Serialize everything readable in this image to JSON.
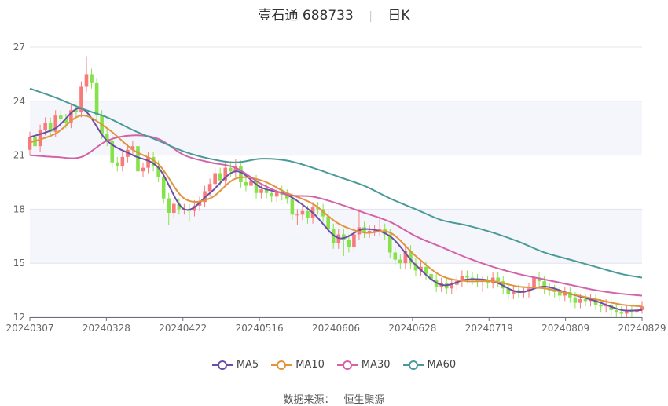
{
  "header": {
    "stock_name": "壹石通",
    "stock_code": "688733",
    "period": "日K"
  },
  "source": {
    "label": "数据来源：",
    "value": "恒生聚源"
  },
  "colors": {
    "up": "#f87a7a",
    "down": "#86e24a",
    "MA5": "#6b4fa6",
    "MA10": "#e2933f",
    "MA30": "#d462a8",
    "MA60": "#4a9a9a",
    "band": "#f5f6fb",
    "grid": "#e0e4ee"
  },
  "chart_data": {
    "type": "candlestick",
    "title": "壹石通 688733 日K",
    "ylim": [
      12,
      27
    ],
    "y_ticks": [
      "12",
      "15",
      "18",
      "21",
      "24",
      "27"
    ],
    "x_ticks": [
      "20240307",
      "20240328",
      "20240422",
      "20240516",
      "20240606",
      "20240628",
      "20240719",
      "20240809",
      "20240829"
    ],
    "grid": true,
    "legend": "bottom",
    "open": [
      21.3,
      22.0,
      21.5,
      22.4,
      22.8,
      22.3,
      23.2,
      23.0,
      22.8,
      23.5,
      23.4,
      24.8,
      25.5,
      25.0,
      23.2,
      22.2,
      21.8,
      20.6,
      20.4,
      20.9,
      21.3,
      21.5,
      20.1,
      20.3,
      20.9,
      20.4,
      19.8,
      18.6,
      17.8,
      18.3,
      18.0,
      18.0,
      17.9,
      18.2,
      18.4,
      19.0,
      19.4,
      20.0,
      19.6,
      20.3,
      20.1,
      20.4,
      19.5,
      19.3,
      19.6,
      18.9,
      19.1,
      18.9,
      18.7,
      19.0,
      18.8,
      18.6,
      17.7,
      17.7,
      17.9,
      17.5,
      18.1,
      18.0,
      17.6,
      16.9,
      16.1,
      16.6,
      16.3,
      15.9,
      16.6,
      17.0,
      16.7,
      16.8,
      16.8,
      16.9,
      16.6,
      15.6,
      15.2,
      15.0,
      15.7,
      15.0,
      14.6,
      14.8,
      14.4,
      14.1,
      13.7,
      13.9,
      13.6,
      13.8,
      14.0,
      14.3,
      14.2,
      14.1,
      14.0,
      14.0,
      13.9,
      14.2,
      14.0,
      13.6,
      13.3,
      13.5,
      13.4,
      13.4,
      13.6,
      14.2,
      14.0,
      13.6,
      13.5,
      13.4,
      13.2,
      13.4,
      13.1,
      12.8,
      13.0,
      12.9,
      13.0,
      12.7,
      12.6,
      12.7,
      12.4,
      12.3,
      12.2,
      12.4,
      12.3,
      12.4
    ],
    "close": [
      22.0,
      21.5,
      22.4,
      22.8,
      22.3,
      23.2,
      23.0,
      22.8,
      23.5,
      23.4,
      24.8,
      25.5,
      25.0,
      23.2,
      22.2,
      21.8,
      20.6,
      20.4,
      20.9,
      21.3,
      21.5,
      20.1,
      20.3,
      20.9,
      20.4,
      19.8,
      18.6,
      17.8,
      18.3,
      18.0,
      18.0,
      17.9,
      18.2,
      18.4,
      19.0,
      19.4,
      20.0,
      19.6,
      20.3,
      20.1,
      20.4,
      19.5,
      19.3,
      19.6,
      18.9,
      19.1,
      18.9,
      18.7,
      19.0,
      18.8,
      18.6,
      17.7,
      17.7,
      17.9,
      17.5,
      18.1,
      18.0,
      17.6,
      16.9,
      16.1,
      16.6,
      16.3,
      15.9,
      16.6,
      17.0,
      16.7,
      16.8,
      16.8,
      16.9,
      16.6,
      15.6,
      15.2,
      15.0,
      15.7,
      15.0,
      14.6,
      14.8,
      14.4,
      14.1,
      13.7,
      13.9,
      13.6,
      13.8,
      14.0,
      14.3,
      14.2,
      14.1,
      14.0,
      14.0,
      13.9,
      14.2,
      14.0,
      13.6,
      13.3,
      13.5,
      13.4,
      13.4,
      13.6,
      14.2,
      14.0,
      13.6,
      13.5,
      13.4,
      13.2,
      13.4,
      13.1,
      12.8,
      13.0,
      12.9,
      13.0,
      12.7,
      12.6,
      12.7,
      12.4,
      12.3,
      12.2,
      12.4,
      12.3,
      12.4,
      12.6
    ],
    "high": [
      22.3,
      22.3,
      22.7,
      23.1,
      23.1,
      23.5,
      23.5,
      23.3,
      23.8,
      23.8,
      25.1,
      26.5,
      25.8,
      25.3,
      23.5,
      22.5,
      22.1,
      20.9,
      21.2,
      21.6,
      21.8,
      21.8,
      20.6,
      21.2,
      21.2,
      20.7,
      20.1,
      18.9,
      18.6,
      18.6,
      18.3,
      18.3,
      18.5,
      18.7,
      19.3,
      19.7,
      20.3,
      20.3,
      20.6,
      20.6,
      20.8,
      20.7,
      19.8,
      19.9,
      19.9,
      19.4,
      19.4,
      19.2,
      19.3,
      19.3,
      19.1,
      18.9,
      18.0,
      18.2,
      18.2,
      18.4,
      18.4,
      18.3,
      17.9,
      17.2,
      16.9,
      16.9,
      16.6,
      17.2,
      18.0,
      17.3,
      17.1,
      17.1,
      17.6,
      17.2,
      16.9,
      15.9,
      15.5,
      16.0,
      16.0,
      15.3,
      15.1,
      15.1,
      14.7,
      14.4,
      14.2,
      14.2,
      14.1,
      14.3,
      14.6,
      14.6,
      14.5,
      14.4,
      14.3,
      14.3,
      14.5,
      14.5,
      14.3,
      13.9,
      13.8,
      13.8,
      13.7,
      13.9,
      14.5,
      14.5,
      14.3,
      13.9,
      13.8,
      13.7,
      13.7,
      13.7,
      13.4,
      13.3,
      13.3,
      13.3,
      13.3,
      13.0,
      13.0,
      13.0,
      12.7,
      12.6,
      12.7,
      12.7,
      12.7,
      12.9
    ],
    "low": [
      21.0,
      21.2,
      21.2,
      22.1,
      22.0,
      22.0,
      22.7,
      22.5,
      22.5,
      23.1,
      23.1,
      24.5,
      24.7,
      22.9,
      21.9,
      21.5,
      20.3,
      20.1,
      20.1,
      20.6,
      21.0,
      19.8,
      19.8,
      20.0,
      20.1,
      19.5,
      18.3,
      17.1,
      17.5,
      17.7,
      17.7,
      17.3,
      17.6,
      17.9,
      18.1,
      18.7,
      19.1,
      19.3,
      19.3,
      19.8,
      19.8,
      19.2,
      19.0,
      19.0,
      18.6,
      18.6,
      18.6,
      18.4,
      18.4,
      18.5,
      18.3,
      17.4,
      17.1,
      17.4,
      17.2,
      17.2,
      17.7,
      17.3,
      16.6,
      15.8,
      15.8,
      15.4,
      15.6,
      15.6,
      16.3,
      16.4,
      16.4,
      16.5,
      16.5,
      16.3,
      15.3,
      14.9,
      14.7,
      14.7,
      14.7,
      14.3,
      14.3,
      14.1,
      13.8,
      13.4,
      13.4,
      13.3,
      13.3,
      13.5,
      13.7,
      13.9,
      13.8,
      13.7,
      13.4,
      13.6,
      13.6,
      13.7,
      13.3,
      13.0,
      13.0,
      13.1,
      13.1,
      13.1,
      13.3,
      13.7,
      13.3,
      13.2,
      13.1,
      12.9,
      12.9,
      12.8,
      12.5,
      12.5,
      12.6,
      12.6,
      12.4,
      12.3,
      12.3,
      12.1,
      12.0,
      12.0,
      12.0,
      12.0,
      12.1,
      12.2
    ],
    "ma_sample_step": 5,
    "series": [
      {
        "name": "MA5",
        "values": [
          22.0,
          22.5,
          23.6,
          21.8,
          21.0,
          20.3,
          18.0,
          18.9,
          20.1,
          19.2,
          18.8,
          17.8,
          16.4,
          16.9,
          16.5,
          14.9,
          13.8,
          14.1,
          14.0,
          13.4,
          13.7,
          13.3,
          12.9,
          12.4,
          12.4
        ]
      },
      {
        "name": "MA10",
        "values": [
          21.7,
          22.2,
          23.2,
          22.5,
          21.3,
          20.5,
          18.6,
          18.6,
          19.7,
          19.6,
          18.9,
          18.3,
          17.2,
          16.7,
          16.7,
          15.4,
          14.3,
          14.0,
          14.0,
          13.7,
          13.6,
          13.3,
          13.0,
          12.7,
          12.6
        ]
      },
      {
        "name": "MA30",
        "values": [
          21.0,
          20.9,
          20.9,
          21.8,
          22.1,
          21.9,
          21.0,
          20.6,
          20.3,
          19.4,
          18.8,
          18.7,
          18.3,
          17.8,
          17.3,
          16.5,
          15.9,
          15.3,
          14.8,
          14.4,
          14.1,
          13.8,
          13.5,
          13.3,
          13.2
        ]
      },
      {
        "name": "MA60",
        "values": [
          24.7,
          24.2,
          23.6,
          23.1,
          22.4,
          21.8,
          21.2,
          20.8,
          20.6,
          20.8,
          20.7,
          20.3,
          19.8,
          19.3,
          18.6,
          18.0,
          17.4,
          17.1,
          16.7,
          16.2,
          15.6,
          15.2,
          14.8,
          14.4,
          14.2
        ]
      }
    ]
  }
}
